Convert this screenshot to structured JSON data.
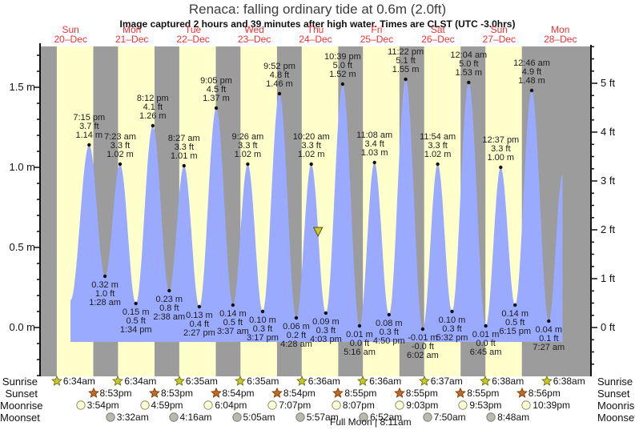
{
  "chart_data": {
    "type": "area",
    "title": "Renaca: falling  ordinary tide at 0.6m (2.0ft)",
    "subtitle": "Image captured 2 hours and 39 minutes after high water. Times are CLST (UTC -3.0hrs)",
    "y_axis_left_ticks": [
      {
        "label": "0.0 m",
        "value": 0.0
      },
      {
        "label": "0.5 m",
        "value": 0.5
      },
      {
        "label": "1.0 m",
        "value": 1.0
      },
      {
        "label": "1.5 m",
        "value": 1.5
      }
    ],
    "y_axis_right_ticks": [
      {
        "label": "0 ft",
        "value": 0
      },
      {
        "label": "1 ft",
        "value": 1
      },
      {
        "label": "2 ft",
        "value": 2
      },
      {
        "label": "3 ft",
        "value": 3
      },
      {
        "label": "4 ft",
        "value": 4
      },
      {
        "label": "5 ft",
        "value": 5
      }
    ],
    "days": [
      {
        "name": "Sun",
        "date": "20–Dec",
        "sunrise": "6:34am",
        "sunset": "8:53pm",
        "moonrise": "3:54pm",
        "moonset": null
      },
      {
        "name": "Mon",
        "date": "21–Dec",
        "sunrise": "6:34am",
        "sunset": "8:53pm",
        "moonrise": "4:59pm",
        "moonset": "3:32am"
      },
      {
        "name": "Tue",
        "date": "22–Dec",
        "sunrise": "6:35am",
        "sunset": "8:54pm",
        "moonrise": "6:04pm",
        "moonset": "4:16am"
      },
      {
        "name": "Wed",
        "date": "23–Dec",
        "sunrise": "6:35am",
        "sunset": "8:54pm",
        "moonrise": "7:07pm",
        "moonset": "5:05am"
      },
      {
        "name": "Thu",
        "date": "24–Dec",
        "sunrise": "6:36am",
        "sunset": "8:55pm",
        "moonrise": "8:07pm",
        "moonset": "5:57am"
      },
      {
        "name": "Fri",
        "date": "25–Dec",
        "sunrise": "6:36am",
        "sunset": "8:55pm",
        "moonrise": "9:03pm",
        "moonset": "6:52am"
      },
      {
        "name": "Sat",
        "date": "26–Dec",
        "sunrise": "6:37am",
        "sunset": "8:55pm",
        "moonrise": "9:53pm",
        "moonset": "7:50am"
      },
      {
        "name": "Sun",
        "date": "27–Dec",
        "sunrise": "6:38am",
        "sunset": "8:56pm",
        "moonrise": "10:39pm",
        "moonset": "8:48am"
      },
      {
        "name": "Mon",
        "date": "28–Dec",
        "sunrise": "6:38am",
        "sunset": null,
        "moonrise": null,
        "moonset": null
      }
    ],
    "tide_events": [
      {
        "kind": "high",
        "day": 0,
        "time": "7:15 pm",
        "ft": "3.7 ft",
        "m": "1.14 m",
        "value_m": 1.14
      },
      {
        "kind": "low",
        "day": 1,
        "time": "1:28 am",
        "ft": "1.0 ft",
        "m": "0.32 m",
        "value_m": 0.32
      },
      {
        "kind": "high",
        "day": 1,
        "time": "7:23 am",
        "ft": "3.3 ft",
        "m": "1.02 m",
        "value_m": 1.02
      },
      {
        "kind": "low",
        "day": 1,
        "time": "1:34 pm",
        "ft": "0.5 ft",
        "m": "0.15 m",
        "value_m": 0.15
      },
      {
        "kind": "high",
        "day": 1,
        "time": "8:12 pm",
        "ft": "4.1 ft",
        "m": "1.26 m",
        "value_m": 1.26
      },
      {
        "kind": "low",
        "day": 2,
        "time": "2:38 am",
        "ft": "0.8 ft",
        "m": "0.23 m",
        "value_m": 0.23
      },
      {
        "kind": "high",
        "day": 2,
        "time": "8:27 am",
        "ft": "3.3 ft",
        "m": "1.01 m",
        "value_m": 1.01
      },
      {
        "kind": "low",
        "day": 2,
        "time": "2:27 pm",
        "ft": "0.4 ft",
        "m": "0.13 m",
        "value_m": 0.13
      },
      {
        "kind": "high",
        "day": 2,
        "time": "9:05 pm",
        "ft": "4.5 ft",
        "m": "1.37 m",
        "value_m": 1.37
      },
      {
        "kind": "low",
        "day": 3,
        "time": "3:37 am",
        "ft": "0.5 ft",
        "m": "0.14 m",
        "value_m": 0.14
      },
      {
        "kind": "high",
        "day": 3,
        "time": "9:26 am",
        "ft": "3.3 ft",
        "m": "1.02 m",
        "value_m": 1.02
      },
      {
        "kind": "low",
        "day": 3,
        "time": "3:17 pm",
        "ft": "0.3 ft",
        "m": "0.10 m",
        "value_m": 0.1
      },
      {
        "kind": "high",
        "day": 3,
        "time": "9:52 pm",
        "ft": "4.8 ft",
        "m": "1.46 m",
        "value_m": 1.46
      },
      {
        "kind": "low",
        "day": 4,
        "time": "4:28 am",
        "ft": "0.2 ft",
        "m": "0.06 m",
        "value_m": 0.06
      },
      {
        "kind": "high",
        "day": 4,
        "time": "10:20 am",
        "ft": "3.3 ft",
        "m": "1.02 m",
        "value_m": 1.02
      },
      {
        "kind": "low",
        "day": 4,
        "time": "4:03 pm",
        "ft": "0.3 ft",
        "m": "0.09 m",
        "value_m": 0.09
      },
      {
        "kind": "high",
        "day": 4,
        "time": "10:39 pm",
        "ft": "5.0 ft",
        "m": "1.52 m",
        "value_m": 1.52
      },
      {
        "kind": "low",
        "day": 5,
        "time": "5:16 am",
        "ft": "0.0 ft",
        "m": "0.01 m",
        "value_m": 0.01
      },
      {
        "kind": "high",
        "day": 5,
        "time": "11:08 am",
        "ft": "3.4 ft",
        "m": "1.03 m",
        "value_m": 1.03
      },
      {
        "kind": "low",
        "day": 5,
        "time": "4:50 pm",
        "ft": "0.3 ft",
        "m": "0.08 m",
        "value_m": 0.08
      },
      {
        "kind": "high",
        "day": 5,
        "time": "11:22 pm",
        "ft": "5.1 ft",
        "m": "1.55 m",
        "value_m": 1.55
      },
      {
        "kind": "low",
        "day": 6,
        "time": "6:02 am",
        "ft": "-0.0 ft",
        "m": "-0.01 m",
        "value_m": -0.01
      },
      {
        "kind": "high",
        "day": 6,
        "time": "11:54 am",
        "ft": "3.3 ft",
        "m": "1.02 m",
        "value_m": 1.02
      },
      {
        "kind": "low",
        "day": 6,
        "time": "5:32 pm",
        "ft": "0.3 ft",
        "m": "0.10 m",
        "value_m": 0.1
      },
      {
        "kind": "high",
        "day": 7,
        "time": "12:04 am",
        "ft": "5.0 ft",
        "m": "1.53 m",
        "value_m": 1.53
      },
      {
        "kind": "low",
        "day": 7,
        "time": "6:45 am",
        "ft": "0.0 ft",
        "m": "0.01 m",
        "value_m": 0.01
      },
      {
        "kind": "high",
        "day": 7,
        "time": "12:37 pm",
        "ft": "3.3 ft",
        "m": "1.00 m",
        "value_m": 1.0
      },
      {
        "kind": "low",
        "day": 7,
        "time": "6:15 pm",
        "ft": "0.5 ft",
        "m": "0.14 m",
        "value_m": 0.14
      },
      {
        "kind": "high",
        "day": 8,
        "time": "12:46 am",
        "ft": "4.9 ft",
        "m": "1.48 m",
        "value_m": 1.48
      },
      {
        "kind": "low",
        "day": 8,
        "time": "7:27 am",
        "ft": "0.1 ft",
        "m": "0.04 m",
        "value_m": 0.04
      }
    ],
    "marker": {
      "day": 4,
      "hour_of_day": 13.0,
      "value_m": 0.6
    },
    "full_moon_note": "Full Moon | 8:11am",
    "row_labels": {
      "sunrise": "Sunrise",
      "sunset": "Sunset",
      "moonrise": "Moonrise",
      "moonset": "Moonset"
    },
    "colors": {
      "day_band": "#ffffcc",
      "night_band": "#9c9c9c",
      "tide_fill": "#99aaff",
      "day_label": "#ee3333",
      "sunrise_icon": "#c8c832",
      "sunrise_icon_stroke": "#6e6e00",
      "sunset_icon": "#bf6a2a",
      "sunset_icon_stroke": "#7a3d00",
      "moonrise_icon": "#ffffd8",
      "moonrise_icon_stroke": "#8f8f6e",
      "moonset_icon": "#b9b9ae",
      "moonset_icon_stroke": "#7d7d7d",
      "marker": "#c8c832"
    }
  }
}
